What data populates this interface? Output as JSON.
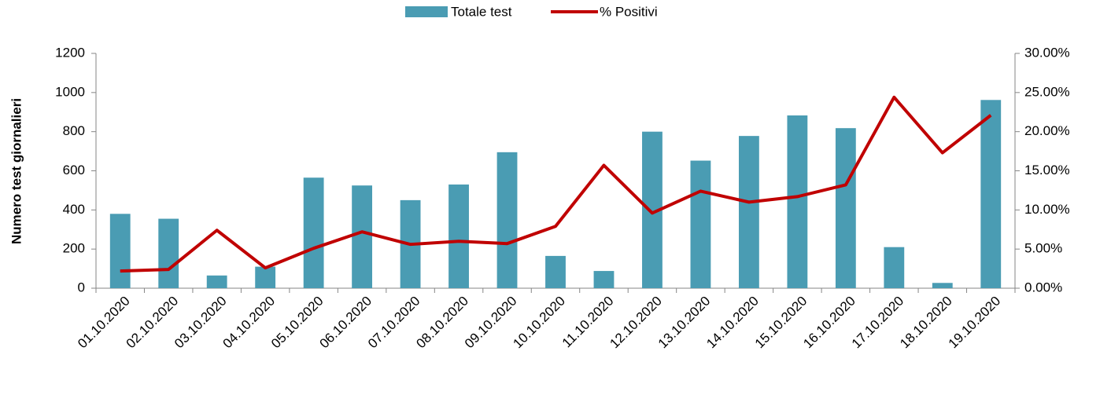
{
  "chart_data": {
    "type": "bar_line",
    "y_label": "Numero test giornalieri",
    "categories": [
      "01.10.2020",
      "02.10.2020",
      "03.10.2020",
      "04.10.2020",
      "05.10.2020",
      "06.10.2020",
      "07.10.2020",
      "08.10.2020",
      "09.10.2020",
      "10.10.2020",
      "11.10.2020",
      "12.10.2020",
      "13.10.2020",
      "14.10.2020",
      "15.10.2020",
      "16.10.2020",
      "17.10.2020",
      "18.10.2020",
      "19.10.2020"
    ],
    "series": [
      {
        "name": "Totale test",
        "color": "#4a9cb3",
        "type": "bar",
        "axis": "y",
        "values": [
          380,
          355,
          65,
          110,
          565,
          525,
          450,
          530,
          695,
          165,
          88,
          800,
          652,
          778,
          883,
          818,
          210,
          27,
          962
        ]
      },
      {
        "name": "% Positivi",
        "color": "#c00000",
        "type": "line",
        "axis": "y2",
        "values": [
          2.2,
          2.4,
          7.4,
          2.6,
          5.1,
          7.2,
          5.6,
          6.0,
          5.7,
          7.9,
          15.7,
          9.6,
          12.4,
          11.0,
          11.7,
          13.2,
          24.4,
          17.3,
          22.1
        ]
      }
    ],
    "ylim": [
      0,
      1200
    ],
    "yticks": [
      0,
      200,
      400,
      600,
      800,
      1000,
      1200
    ],
    "y2lim": [
      0,
      30
    ],
    "y2ticks": [
      {
        "value": 0,
        "label": "0.00%"
      },
      {
        "value": 5,
        "label": "5.00%"
      },
      {
        "value": 10,
        "label": "10.00%"
      },
      {
        "value": 15,
        "label": "15.00%"
      },
      {
        "value": 20,
        "label": "20.00%"
      },
      {
        "value": 25,
        "label": "25.00%"
      },
      {
        "value": 30,
        "label": "30.00%"
      }
    ],
    "grid": false,
    "legend": "top"
  }
}
